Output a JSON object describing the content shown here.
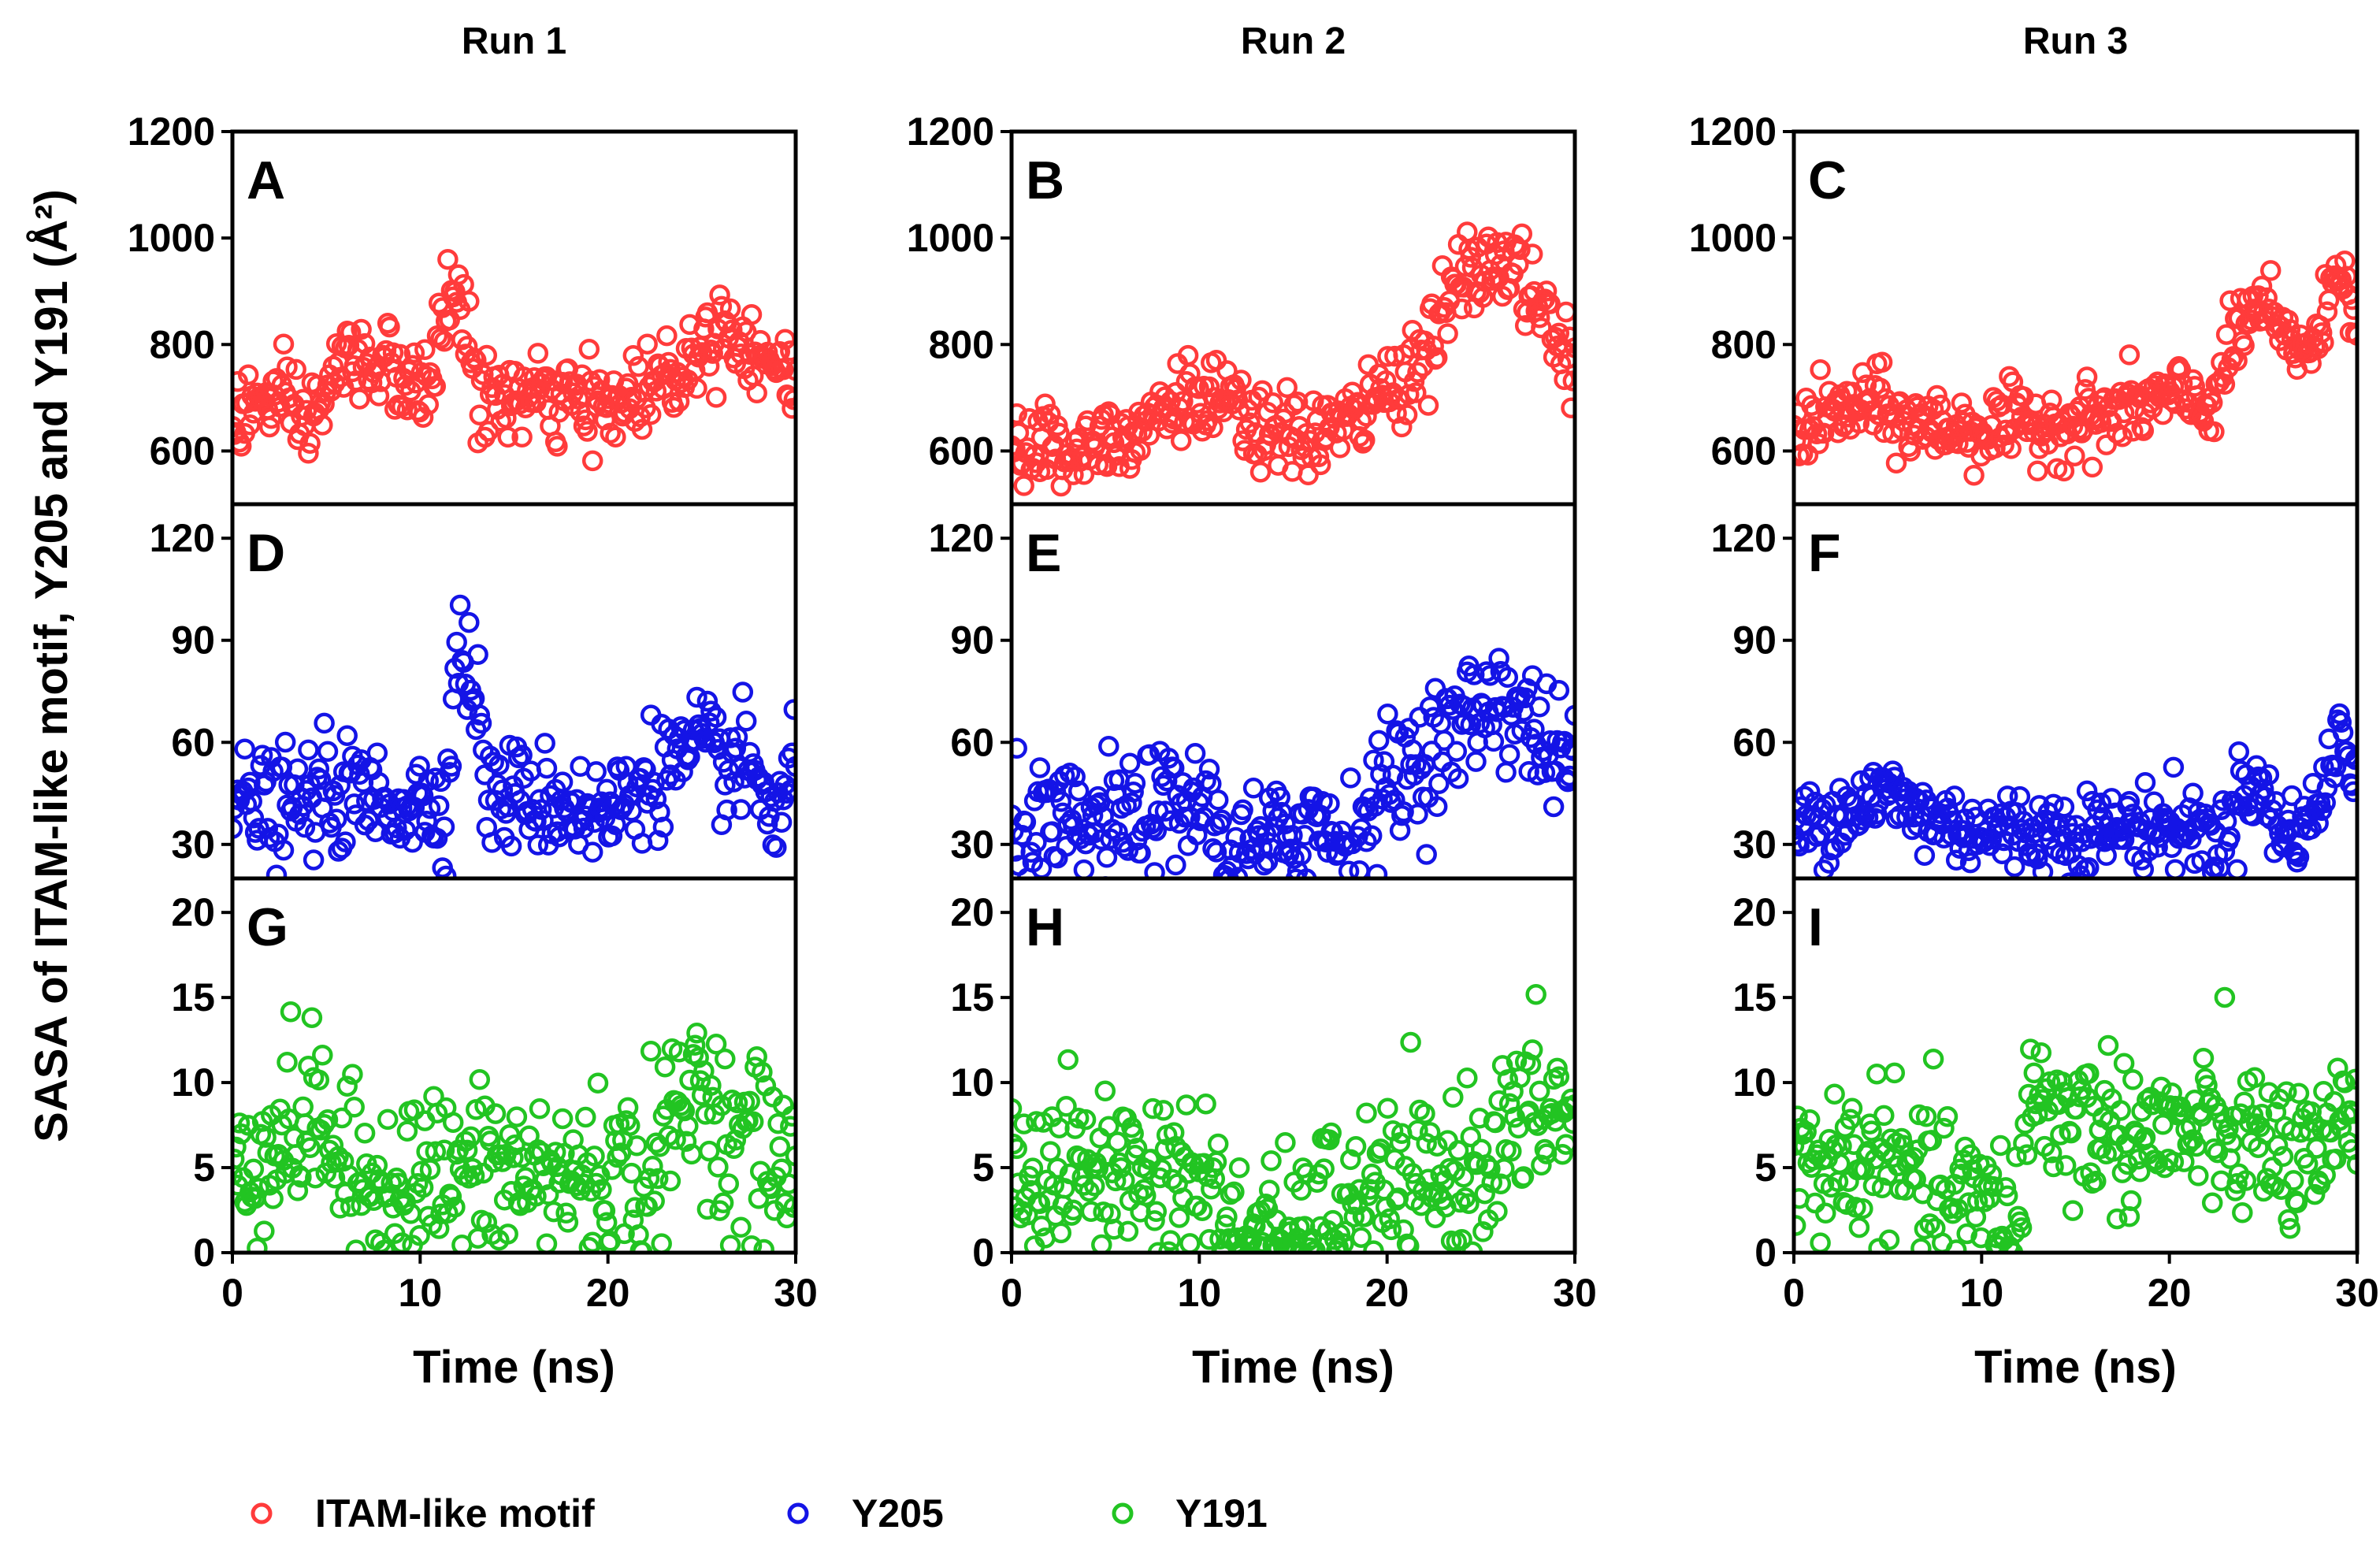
{
  "colors": {
    "itam": "#ff3b3b",
    "y205": "#1414e6",
    "y191": "#22c422"
  },
  "y_axis_label": "SASA of ITAM-like motif, Y205 and Y191 (Å²)",
  "legend": [
    {
      "label": "ITAM-like motif",
      "color": "#ff3b3b"
    },
    {
      "label": "Y205",
      "color": "#1414e6"
    },
    {
      "label": "Y191",
      "color": "#22c422"
    }
  ],
  "chart_data": {
    "type": "scatter",
    "marker": "open-circle",
    "xlabel": "Time (ns)",
    "xlim": [
      0,
      30
    ],
    "xticks": [
      0,
      10,
      20,
      30
    ],
    "columns": [
      "Run 1",
      "Run 2",
      "Run 3"
    ],
    "rows": [
      {
        "series": "ITAM-like motif",
        "color": "#ff3b3b",
        "ylim": [
          500,
          1200
        ],
        "yticks": [
          600,
          800,
          1000,
          1200
        ]
      },
      {
        "series": "Y205",
        "color": "#1414e6",
        "ylim": [
          20,
          130
        ],
        "yticks": [
          30,
          60,
          90,
          120
        ]
      },
      {
        "series": "Y191",
        "color": "#22c422",
        "ylim": [
          0,
          22
        ],
        "yticks": [
          0,
          5,
          10,
          15,
          20
        ]
      }
    ],
    "panels": [
      {
        "label": "A",
        "run": "Run 1",
        "series": "ITAM-like motif",
        "noise": 40,
        "trend": [
          [
            0,
            660
          ],
          [
            2,
            700
          ],
          [
            4,
            650
          ],
          [
            6,
            770
          ],
          [
            8,
            770
          ],
          [
            10,
            690
          ],
          [
            12,
            930
          ],
          [
            13,
            700
          ],
          [
            16,
            700
          ],
          [
            20,
            680
          ],
          [
            24,
            760
          ],
          [
            26,
            840
          ],
          [
            28,
            790
          ],
          [
            30,
            720
          ]
        ]
      },
      {
        "label": "B",
        "run": "Run 2",
        "series": "ITAM-like motif",
        "noise": 40,
        "trend": [
          [
            0,
            620
          ],
          [
            3,
            600
          ],
          [
            6,
            640
          ],
          [
            9,
            700
          ],
          [
            11,
            690
          ],
          [
            14,
            620
          ],
          [
            18,
            650
          ],
          [
            22,
            780
          ],
          [
            24,
            930
          ],
          [
            26,
            950
          ],
          [
            27,
            940
          ],
          [
            30,
            740
          ]
        ]
      },
      {
        "label": "C",
        "run": "Run 3",
        "series": "ITAM-like motif",
        "noise": 35,
        "trend": [
          [
            0,
            640
          ],
          [
            4,
            690
          ],
          [
            6,
            650
          ],
          [
            10,
            640
          ],
          [
            16,
            660
          ],
          [
            20,
            700
          ],
          [
            22,
            680
          ],
          [
            24,
            840
          ],
          [
            25,
            880
          ],
          [
            26,
            800
          ],
          [
            28,
            800
          ],
          [
            29,
            970
          ],
          [
            30,
            860
          ]
        ]
      },
      {
        "label": "D",
        "run": "Run 1",
        "series": "Y205",
        "noise": 8,
        "trend": [
          [
            0,
            42
          ],
          [
            3,
            40
          ],
          [
            5,
            45
          ],
          [
            10,
            42
          ],
          [
            11.5,
            45
          ],
          [
            12,
            90
          ],
          [
            13,
            75
          ],
          [
            13.5,
            45
          ],
          [
            18,
            42
          ],
          [
            20,
            38
          ],
          [
            22,
            50
          ],
          [
            25,
            57
          ],
          [
            28,
            50
          ],
          [
            29,
            35
          ],
          [
            30,
            55
          ]
        ]
      },
      {
        "label": "E",
        "run": "Run 2",
        "series": "Y205",
        "noise": 9,
        "trend": [
          [
            0,
            33
          ],
          [
            5,
            35
          ],
          [
            10,
            42
          ],
          [
            12,
            26
          ],
          [
            14,
            30
          ],
          [
            16,
            38
          ],
          [
            18,
            30
          ],
          [
            20,
            48
          ],
          [
            24,
            65
          ],
          [
            26,
            75
          ],
          [
            28,
            62
          ],
          [
            30,
            52
          ]
        ]
      },
      {
        "label": "F",
        "run": "Run 3",
        "series": "Y205",
        "noise": 6,
        "trend": [
          [
            0,
            35
          ],
          [
            5,
            45
          ],
          [
            7,
            38
          ],
          [
            10,
            34
          ],
          [
            16,
            34
          ],
          [
            20,
            36
          ],
          [
            23,
            32
          ],
          [
            24,
            50
          ],
          [
            25,
            45
          ],
          [
            26,
            32
          ],
          [
            28,
            40
          ],
          [
            29,
            65
          ],
          [
            30,
            45
          ]
        ]
      },
      {
        "label": "G",
        "run": "Run 1",
        "series": "Y191",
        "noise": 2.6,
        "trend": [
          [
            0,
            5
          ],
          [
            3,
            7
          ],
          [
            5,
            8
          ],
          [
            6,
            4
          ],
          [
            12,
            4.5
          ],
          [
            20,
            4.5
          ],
          [
            22,
            4.5
          ],
          [
            24,
            8
          ],
          [
            25,
            11
          ],
          [
            26,
            7
          ],
          [
            30,
            5
          ]
        ]
      },
      {
        "label": "H",
        "run": "Run 2",
        "series": "Y191",
        "noise": 2.4,
        "trend": [
          [
            0,
            4.5
          ],
          [
            5,
            5
          ],
          [
            10,
            4.5
          ],
          [
            11.5,
            1.5
          ],
          [
            12,
            0.5
          ],
          [
            15.5,
            0.5
          ],
          [
            16,
            2.5
          ],
          [
            20,
            3.5
          ],
          [
            24,
            4.5
          ],
          [
            28,
            8.5
          ],
          [
            30,
            8
          ]
        ]
      },
      {
        "label": "I",
        "run": "Run 3",
        "series": "Y191",
        "noise": 2.3,
        "trend": [
          [
            0,
            5
          ],
          [
            4,
            5.5
          ],
          [
            8,
            3.5
          ],
          [
            12,
            2
          ],
          [
            12.6,
            10
          ],
          [
            14,
            8
          ],
          [
            18,
            7
          ],
          [
            22,
            7
          ],
          [
            26,
            6
          ],
          [
            28,
            4.5
          ],
          [
            30,
            9
          ]
        ]
      }
    ]
  }
}
